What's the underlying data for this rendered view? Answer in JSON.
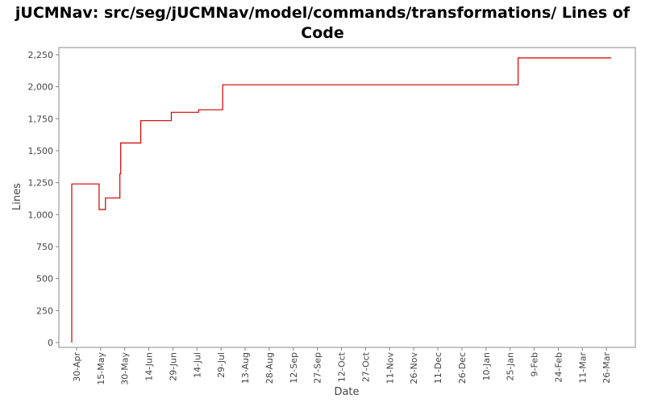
{
  "chart_data": {
    "type": "line",
    "title": "jUCMNav: src/seg/jUCMNav/model/commands/transformations/ Lines of Code",
    "title_line1": "jUCMNav: src/seg/jUCMNav/model/commands/transformations/ Lines of",
    "title_line2": "Code",
    "xlabel": "Date",
    "ylabel": "Lines",
    "ylim": [
      0,
      2300
    ],
    "y_ticks": [
      0,
      250,
      500,
      750,
      1000,
      1250,
      1500,
      1750,
      2000,
      2250
    ],
    "y_tick_labels": [
      "0",
      "250",
      "500",
      "750",
      "1,000",
      "1,250",
      "1,500",
      "1,750",
      "2,000",
      "2,250"
    ],
    "x_range_days": [
      0,
      349
    ],
    "x_ticks": [
      {
        "label": "30-Apr",
        "day": 3
      },
      {
        "label": "15-May",
        "day": 18
      },
      {
        "label": "30-May",
        "day": 33
      },
      {
        "label": "14-Jun",
        "day": 48
      },
      {
        "label": "29-Jun",
        "day": 63
      },
      {
        "label": "14-Jul",
        "day": 78
      },
      {
        "label": "29-Jul",
        "day": 93
      },
      {
        "label": "13-Aug",
        "day": 108
      },
      {
        "label": "28-Aug",
        "day": 123
      },
      {
        "label": "12-Sep",
        "day": 138
      },
      {
        "label": "27-Sep",
        "day": 153
      },
      {
        "label": "12-Oct",
        "day": 168
      },
      {
        "label": "27-Oct",
        "day": 183
      },
      {
        "label": "11-Nov",
        "day": 198
      },
      {
        "label": "26-Nov",
        "day": 213
      },
      {
        "label": "11-Dec",
        "day": 228
      },
      {
        "label": "26-Dec",
        "day": 243
      },
      {
        "label": "10-Jan",
        "day": 258
      },
      {
        "label": "25-Jan",
        "day": 273
      },
      {
        "label": "9-Feb",
        "day": 288
      },
      {
        "label": "24-Feb",
        "day": 303
      },
      {
        "label": "11-Mar",
        "day": 318
      },
      {
        "label": "26-Mar",
        "day": 333
      }
    ],
    "grid": false,
    "line_color": "#cc0000",
    "series": [
      {
        "name": "Lines",
        "step": true,
        "points": [
          {
            "day": 0,
            "value": 0
          },
          {
            "day": 0,
            "value": 1240
          },
          {
            "day": 17,
            "value": 1240
          },
          {
            "day": 17,
            "value": 1040
          },
          {
            "day": 21,
            "value": 1040
          },
          {
            "day": 21,
            "value": 1130
          },
          {
            "day": 30,
            "value": 1130
          },
          {
            "day": 30,
            "value": 1320
          },
          {
            "day": 30.5,
            "value": 1320
          },
          {
            "day": 30.5,
            "value": 1560
          },
          {
            "day": 43,
            "value": 1560
          },
          {
            "day": 43,
            "value": 1735
          },
          {
            "day": 62,
            "value": 1735
          },
          {
            "day": 62,
            "value": 1800
          },
          {
            "day": 79,
            "value": 1800
          },
          {
            "day": 79,
            "value": 1820
          },
          {
            "day": 94,
            "value": 1820
          },
          {
            "day": 94,
            "value": 2015
          },
          {
            "day": 278,
            "value": 2015
          },
          {
            "day": 278,
            "value": 2225
          },
          {
            "day": 336,
            "value": 2225
          }
        ]
      }
    ]
  }
}
